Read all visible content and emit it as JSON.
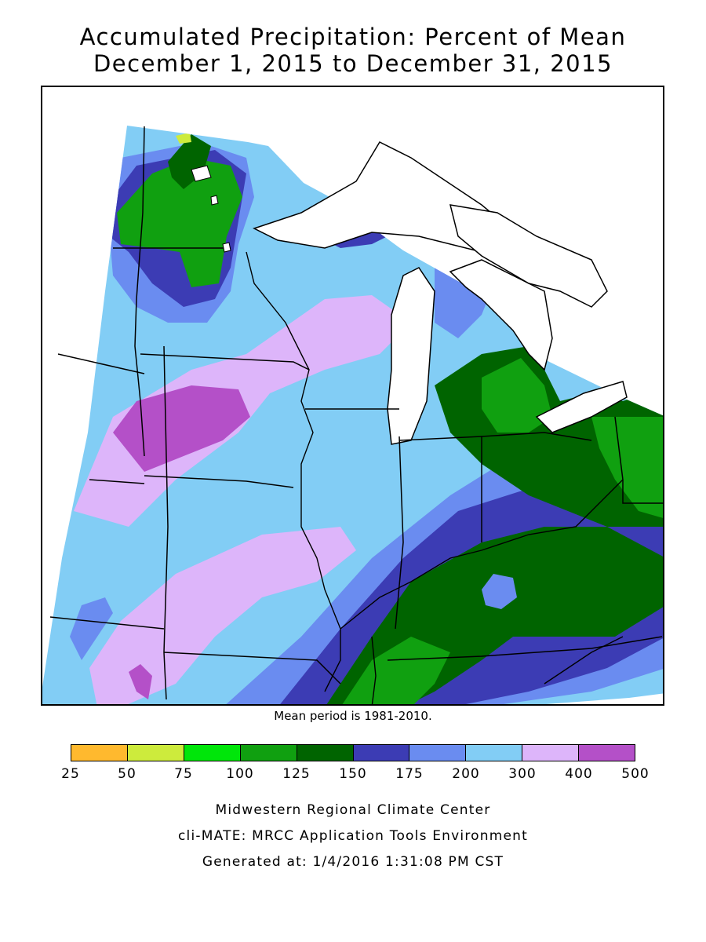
{
  "title": {
    "line1": "Accumulated Precipitation: Percent of Mean",
    "line2": "December 1, 2015 to December 31, 2015"
  },
  "mean_period_note": "Mean period is 1981-2010.",
  "legend": {
    "colors": [
      "#FFB92E",
      "#CDEB3C",
      "#00E60A",
      "#10A010",
      "#006400",
      "#3C3CB4",
      "#6A8CF0",
      "#82CDF5",
      "#DDB5FA",
      "#B450C8"
    ],
    "labels": [
      "25",
      "50",
      "75",
      "100",
      "125",
      "150",
      "175",
      "200",
      "300",
      "400",
      "500"
    ]
  },
  "credits": {
    "line1": "Midwestern Regional Climate Center",
    "line2": "cli-MATE: MRCC Application Tools Environment",
    "line3": "Generated at: 1/4/2016 1:31:08 PM CST"
  }
}
